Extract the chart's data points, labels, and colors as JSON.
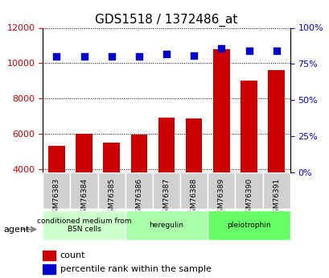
{
  "title": "GDS1518 / 1372486_at",
  "samples": [
    "GSM76383",
    "GSM76384",
    "GSM76385",
    "GSM76386",
    "GSM76387",
    "GSM76388",
    "GSM76389",
    "GSM76390",
    "GSM76391"
  ],
  "counts": [
    5300,
    6000,
    5500,
    5950,
    6900,
    6850,
    10800,
    9000,
    9600
  ],
  "percentiles": [
    80,
    80,
    80,
    80,
    82,
    81,
    86,
    84,
    84
  ],
  "groups": [
    {
      "label": "conditioned medium from\nBSN cells",
      "start": 0,
      "end": 3,
      "color": "#ccffcc"
    },
    {
      "label": "heregulin",
      "start": 3,
      "end": 6,
      "color": "#aaffaa"
    },
    {
      "label": "pleiotrophin",
      "start": 6,
      "end": 9,
      "color": "#66ff66"
    }
  ],
  "bar_color": "#cc0000",
  "dot_color": "#0000cc",
  "ylim_left": [
    3800,
    12000
  ],
  "ylim_right": [
    0,
    100
  ],
  "yticks_left": [
    4000,
    6000,
    8000,
    10000,
    12000
  ],
  "yticks_right": [
    0,
    25,
    50,
    75,
    100
  ],
  "grid_color": "#000000",
  "background_color": "#ffffff",
  "plot_bg_color": "#ffffff",
  "legend_count_color": "#cc0000",
  "legend_pct_color": "#0000cc",
  "agent_label": "agent"
}
